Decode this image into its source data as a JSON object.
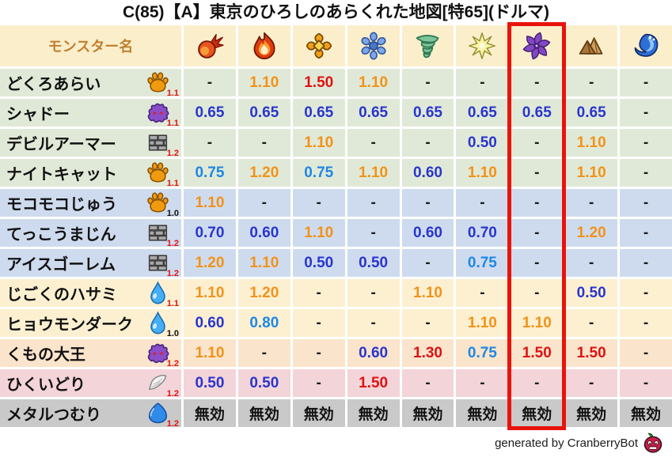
{
  "title": "C(85)【A】東京のひろしのあらくれた地図[特65](ドルマ)",
  "header": {
    "monster_column_label": "モンスター名",
    "element_icons": [
      "fire-icon",
      "flame-icon",
      "explosion-icon",
      "ice-icon",
      "wind-icon",
      "light-icon",
      "dark-icon",
      "earth-icon",
      "water-icon"
    ],
    "highlighted_element_index": 6
  },
  "monsters": [
    {
      "name": "どくろあらい",
      "type_icon": "paw-icon",
      "modifier": "1.1",
      "row_color": "green",
      "values": [
        "-",
        "1.10",
        "1.50",
        "1.10",
        "-",
        "-",
        "-",
        "-",
        "-"
      ]
    },
    {
      "name": "シャドー",
      "type_icon": "shadow-icon",
      "modifier": "1.1",
      "row_color": "green",
      "values": [
        "0.65",
        "0.65",
        "0.65",
        "0.65",
        "0.65",
        "0.65",
        "0.65",
        "0.65",
        "-"
      ]
    },
    {
      "name": "デビルアーマー",
      "type_icon": "brick-icon",
      "modifier": "1.2",
      "row_color": "green",
      "values": [
        "-",
        "-",
        "1.10",
        "-",
        "-",
        "0.50",
        "-",
        "1.10",
        "-"
      ]
    },
    {
      "name": "ナイトキャット",
      "type_icon": "paw-icon",
      "modifier": "1.1",
      "row_color": "green",
      "values": [
        "0.75",
        "1.20",
        "0.75",
        "1.10",
        "0.60",
        "1.10",
        "-",
        "1.10",
        "-"
      ]
    },
    {
      "name": "モコモコじゅう",
      "type_icon": "paw-icon",
      "modifier": "1.0",
      "row_color": "blue",
      "values": [
        "1.10",
        "-",
        "-",
        "-",
        "-",
        "-",
        "-",
        "-",
        "-"
      ]
    },
    {
      "name": "てっこうまじん",
      "type_icon": "brick-icon",
      "modifier": "1.2",
      "row_color": "blue",
      "values": [
        "0.70",
        "0.60",
        "1.10",
        "-",
        "0.60",
        "0.70",
        "-",
        "1.20",
        "-"
      ]
    },
    {
      "name": "アイスゴーレム",
      "type_icon": "brick-icon",
      "modifier": "1.2",
      "row_color": "blue",
      "values": [
        "1.20",
        "1.10",
        "0.50",
        "0.50",
        "-",
        "0.75",
        "-",
        "-",
        "-"
      ]
    },
    {
      "name": "じごくのハサミ",
      "type_icon": "drop-icon",
      "modifier": "1.1",
      "row_color": "cream",
      "values": [
        "1.10",
        "1.20",
        "-",
        "-",
        "1.10",
        "-",
        "-",
        "0.50",
        "-"
      ]
    },
    {
      "name": "ヒョウモンダーク",
      "type_icon": "drop-icon",
      "modifier": "1.0",
      "row_color": "cream",
      "values": [
        "0.60",
        "0.80",
        "-",
        "-",
        "-",
        "1.10",
        "1.10",
        "-",
        "-"
      ]
    },
    {
      "name": "くもの大王",
      "type_icon": "shadow-icon",
      "modifier": "1.2",
      "row_color": "peach",
      "values": [
        "1.10",
        "-",
        "-",
        "0.60",
        "1.30",
        "0.75",
        "1.50",
        "1.50",
        "-"
      ]
    },
    {
      "name": "ひくいどり",
      "type_icon": "wing-icon",
      "modifier": "1.2",
      "row_color": "pink",
      "values": [
        "0.50",
        "0.50",
        "-",
        "1.50",
        "-",
        "-",
        "-",
        "-",
        "-"
      ]
    },
    {
      "name": "メタルつむり",
      "type_icon": "slime-icon",
      "modifier": "1.2",
      "row_color": "gray",
      "values": [
        "無効",
        "無効",
        "無効",
        "無効",
        "無効",
        "無効",
        "無効",
        "無効",
        "無効"
      ]
    }
  ],
  "footer": {
    "credit_text": "generated by CranberryBot",
    "bot_icon": "cranberry-icon"
  },
  "colors": {
    "header_bg": "#fbeecb",
    "header_label": "#c08030",
    "row_bg": {
      "green": "#e0e9d7",
      "blue": "#cedbee",
      "cream": "#fcf0d1",
      "peach": "#fae4cb",
      "pink": "#f3d4d9",
      "gray": "#c9c9c9"
    },
    "values": {
      "neutral": "#1c1c1c",
      "strong_resist": "#2a35cc",
      "resist": "#1e87e5",
      "weak": "#f2921a",
      "very_weak": "#e01212",
      "no_effect": "#111111"
    },
    "modifier": {
      "normal": "#111111",
      "boosted": "#e01212"
    },
    "highlight_box": "#e8140c"
  },
  "chart_data": {
    "type": "table",
    "title": "C(85)【A】東京のひろしのあらくれた地図[特65](ドルマ)",
    "columns": [
      "monster_name",
      "fire",
      "flame",
      "explosion",
      "ice",
      "wind",
      "light",
      "dark",
      "earth",
      "water"
    ],
    "highlighted_column": "dark",
    "rows": [
      [
        "どくろあらい",
        "-",
        "1.10",
        "1.50",
        "1.10",
        "-",
        "-",
        "-",
        "-",
        "-"
      ],
      [
        "シャドー",
        "0.65",
        "0.65",
        "0.65",
        "0.65",
        "0.65",
        "0.65",
        "0.65",
        "0.65",
        "-"
      ],
      [
        "デビルアーマー",
        "-",
        "-",
        "1.10",
        "-",
        "-",
        "0.50",
        "-",
        "1.10",
        "-"
      ],
      [
        "ナイトキャット",
        "0.75",
        "1.20",
        "0.75",
        "1.10",
        "0.60",
        "1.10",
        "-",
        "1.10",
        "-"
      ],
      [
        "モコモコじゅう",
        "1.10",
        "-",
        "-",
        "-",
        "-",
        "-",
        "-",
        "-",
        "-"
      ],
      [
        "てっこうまじん",
        "0.70",
        "0.60",
        "1.10",
        "-",
        "0.60",
        "0.70",
        "-",
        "1.20",
        "-"
      ],
      [
        "アイスゴーレム",
        "1.20",
        "1.10",
        "0.50",
        "0.50",
        "-",
        "0.75",
        "-",
        "-",
        "-"
      ],
      [
        "じごくのハサミ",
        "1.10",
        "1.20",
        "-",
        "-",
        "1.10",
        "-",
        "-",
        "0.50",
        "-"
      ],
      [
        "ヒョウモンダーク",
        "0.60",
        "0.80",
        "-",
        "-",
        "-",
        "1.10",
        "1.10",
        "-",
        "-"
      ],
      [
        "くもの大王",
        "1.10",
        "-",
        "-",
        "0.60",
        "1.30",
        "0.75",
        "1.50",
        "1.50",
        "-"
      ],
      [
        "ひくいどり",
        "0.50",
        "0.50",
        "-",
        "1.50",
        "-",
        "-",
        "-",
        "-",
        "-"
      ],
      [
        "メタルつむり",
        "無効",
        "無効",
        "無効",
        "無効",
        "無効",
        "無効",
        "無効",
        "無効",
        "無効"
      ]
    ],
    "row_modifiers": [
      "1.1",
      "1.1",
      "1.2",
      "1.1",
      "1.0",
      "1.2",
      "1.2",
      "1.1",
      "1.0",
      "1.2",
      "1.2",
      "1.2"
    ]
  }
}
